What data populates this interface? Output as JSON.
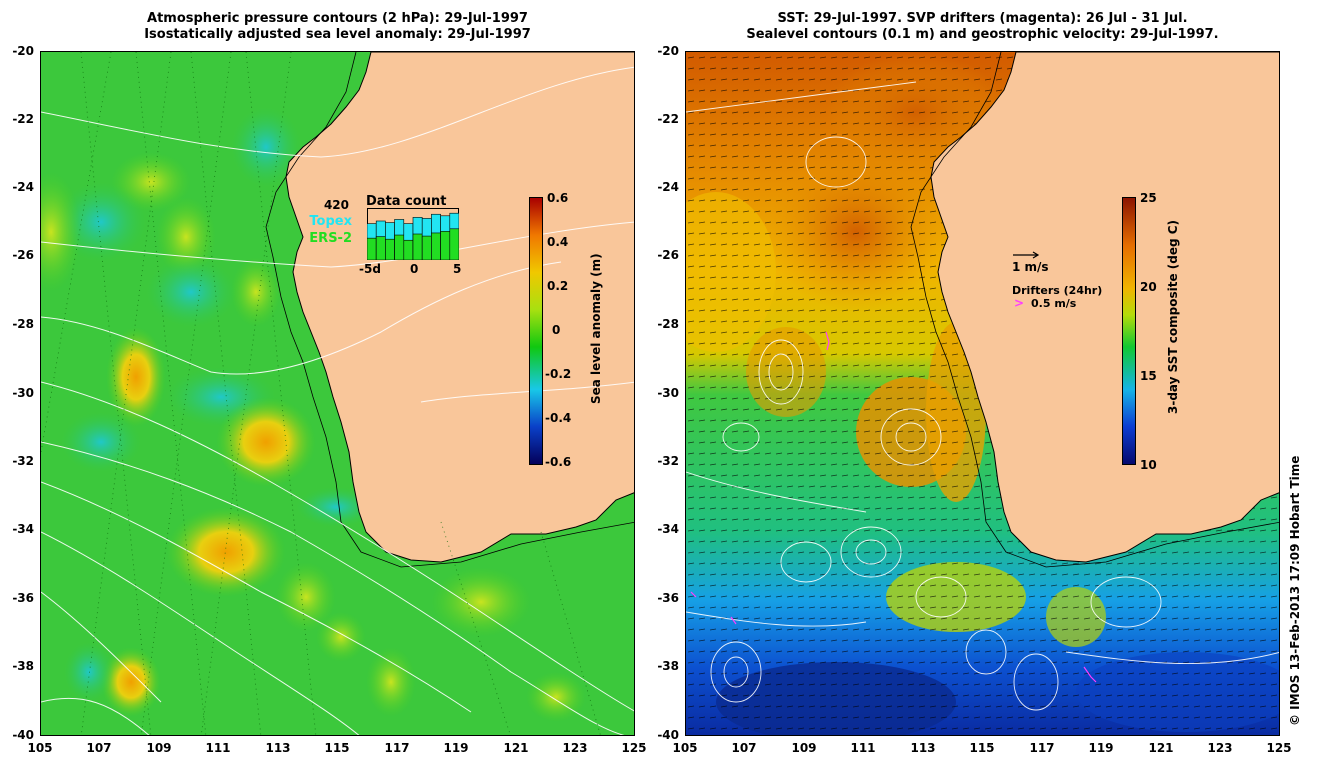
{
  "left_panel": {
    "title_line1": "Atmospheric pressure contours (2 hPa): 29-Jul-1997",
    "title_line2": "Isostatically adjusted sea level anomaly: 29-Jul-1997",
    "x_ticks": [
      "105",
      "107",
      "109",
      "111",
      "113",
      "115",
      "117",
      "119",
      "121",
      "123",
      "125"
    ],
    "y_ticks": [
      "-20",
      "-22",
      "-24",
      "-26",
      "-28",
      "-30",
      "-32",
      "-34",
      "-36",
      "-38",
      "-40"
    ],
    "inset": {
      "count": "420",
      "title": "Data count",
      "topex_label": "Topex",
      "ers_label": "ERS-2",
      "x_ticks": [
        "-5d",
        "0",
        "5"
      ],
      "topex_color": "#22e5f2",
      "ers_color": "#22dd22",
      "topex_values": [
        0.7,
        0.75,
        0.72,
        0.78,
        0.7,
        0.82,
        0.8,
        0.88,
        0.85,
        0.9
      ],
      "ers_values": [
        0.42,
        0.45,
        0.4,
        0.48,
        0.38,
        0.5,
        0.46,
        0.52,
        0.55,
        0.6
      ]
    },
    "colorbar": {
      "title": "Sea level anomaly (m)",
      "ticks": [
        "0.6",
        "0.4",
        "0.2",
        "0",
        "-0.2",
        "-0.4",
        "-0.6"
      ]
    }
  },
  "right_panel": {
    "title_line1": "SST: 29-Jul-1997. SVP drifters (magenta): 26 Jul - 31 Jul.",
    "title_line2": "Sealevel contours (0.1 m) and geostrophic velocity: 29-Jul-1997.",
    "x_ticks": [
      "105",
      "107",
      "109",
      "111",
      "113",
      "115",
      "117",
      "119",
      "121",
      "123",
      "125"
    ],
    "y_ticks": [
      "-20",
      "-22",
      "-24",
      "-26",
      "-28",
      "-30",
      "-32",
      "-34",
      "-36",
      "-38",
      "-40"
    ],
    "velocity_label": "1 m/s",
    "drifters_label": "Drifters (24hr)",
    "drifters_speed": "0.5 m/s",
    "colorbar": {
      "title": "3-day SST composite (deg C)",
      "ticks": [
        "25",
        "20",
        "15",
        "10"
      ]
    }
  },
  "copyright": "© IMOS 13-Feb-2013 17:09 Hobart Time",
  "colors": {
    "land": "#f9c69a",
    "sla_ramp": [
      "#04005a",
      "#0a40c8",
      "#18c8e8",
      "#10c810",
      "#a8e010",
      "#f0c800",
      "#f07800",
      "#a80000"
    ],
    "sst_ramp": [
      "#060a6e",
      "#0c3cd2",
      "#16b4e6",
      "#12c832",
      "#b4dc0a",
      "#f0b400",
      "#e66e00",
      "#8c1400"
    ],
    "drifter": "#ff3cff"
  }
}
